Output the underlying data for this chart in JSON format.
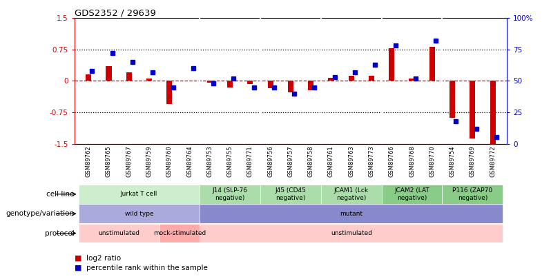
{
  "title": "GDS2352 / 29639",
  "samples": [
    "GSM89762",
    "GSM89765",
    "GSM89767",
    "GSM89759",
    "GSM89760",
    "GSM89764",
    "GSM89753",
    "GSM89755",
    "GSM89771",
    "GSM89756",
    "GSM89757",
    "GSM89758",
    "GSM89761",
    "GSM89763",
    "GSM89773",
    "GSM89766",
    "GSM89768",
    "GSM89770",
    "GSM89754",
    "GSM89769",
    "GSM89772"
  ],
  "log2_ratio": [
    0.15,
    0.35,
    0.2,
    0.05,
    -0.55,
    0.0,
    -0.05,
    -0.15,
    -0.08,
    -0.18,
    -0.28,
    -0.22,
    0.08,
    0.12,
    0.12,
    0.78,
    0.05,
    0.82,
    -0.88,
    -1.38,
    -1.52
  ],
  "percentile": [
    58,
    72,
    65,
    57,
    45,
    60,
    48,
    52,
    45,
    45,
    40,
    45,
    53,
    57,
    63,
    78,
    52,
    82,
    18,
    12,
    5
  ],
  "ylim": [
    -1.5,
    1.5
  ],
  "bar_width": 0.5,
  "red_color": "#CC0000",
  "blue_color": "#0000CC",
  "cell_line_groups": [
    {
      "label": "Jurkat T cell",
      "start": 0,
      "end": 5,
      "color": "#cceecc"
    },
    {
      "label": "J14 (SLP-76\nnegative)",
      "start": 6,
      "end": 8,
      "color": "#aaddaa"
    },
    {
      "label": "J45 (CD45\nnegative)",
      "start": 9,
      "end": 11,
      "color": "#aaddaa"
    },
    {
      "label": "JCAM1 (Lck\nnegative)",
      "start": 12,
      "end": 14,
      "color": "#aaddaa"
    },
    {
      "label": "JCAM2 (LAT\nnegative)",
      "start": 15,
      "end": 17,
      "color": "#88cc88"
    },
    {
      "label": "P116 (ZAP70\nnegative)",
      "start": 18,
      "end": 20,
      "color": "#88cc88"
    }
  ],
  "genotype_groups": [
    {
      "label": "wild type",
      "start": 0,
      "end": 5,
      "color": "#aaaadd"
    },
    {
      "label": "mutant",
      "start": 6,
      "end": 20,
      "color": "#8888cc"
    }
  ],
  "protocol_groups": [
    {
      "label": "unstimulated",
      "start": 0,
      "end": 3,
      "color": "#ffcccc"
    },
    {
      "label": "mock-stimulated",
      "start": 4,
      "end": 5,
      "color": "#ffaaaa"
    },
    {
      "label": "unstimulated",
      "start": 6,
      "end": 20,
      "color": "#ffcccc"
    }
  ],
  "row_labels": [
    "cell line",
    "genotype/variation",
    "protocol"
  ],
  "legend_items": [
    {
      "color": "#CC0000",
      "label": "log2 ratio"
    },
    {
      "color": "#0000CC",
      "label": "percentile rank within the sample"
    }
  ]
}
